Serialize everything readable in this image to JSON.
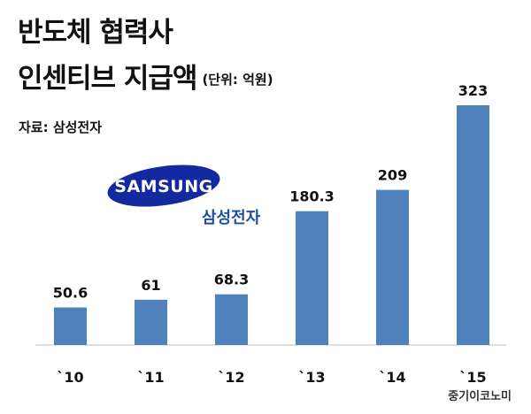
{
  "header": {
    "title_line1": "반도체 협력사",
    "title_line2": "인센티브 지급액",
    "unit": "(단위: 억원)",
    "source": "자료: 삼성전자"
  },
  "logo": {
    "wordmark": "SAMSUNG",
    "subtitle": "삼성전자",
    "color": "#1428a0"
  },
  "credit": "중기이코노미",
  "colors": {
    "bar": "#4f81bd"
  },
  "chart_data": {
    "type": "bar",
    "title": "반도체 협력사 인센티브 지급액",
    "categories": [
      "`10",
      "`11",
      "`12",
      "`13",
      "`14",
      "`15"
    ],
    "values": [
      50.6,
      61,
      68.3,
      180.3,
      209,
      323
    ],
    "value_labels": [
      "50.6",
      "61",
      "68.3",
      "180.3",
      "209",
      "323"
    ],
    "ylim": [
      0,
      323
    ],
    "grid": false,
    "legend": "none"
  }
}
